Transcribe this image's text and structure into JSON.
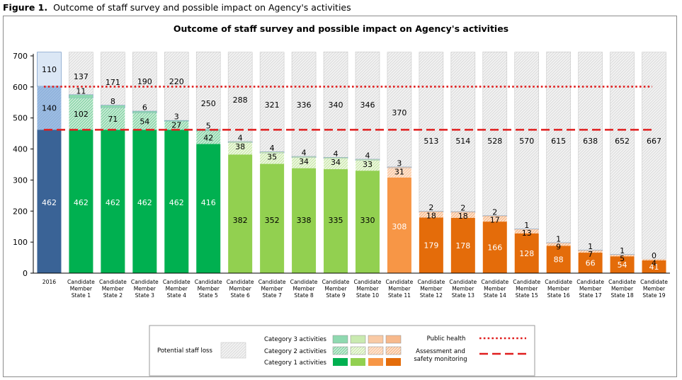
{
  "figure": {
    "label": "Figure 1.",
    "caption": "Outcome of staff survey and possible impact on Agency's activities"
  },
  "chart_data": {
    "type": "bar",
    "title": "Outcome of staff survey and possible impact on Agency's activities",
    "xlabel": "",
    "ylabel": "",
    "ylim": [
      0,
      700
    ],
    "yticks": [
      "0",
      "100",
      "200",
      "300",
      "400",
      "500",
      "600",
      "700"
    ],
    "categories": [
      "2016",
      "Candidate Member State 1",
      "Candidate Member State 2",
      "Candidate Member State 3",
      "Candidate Member State 4",
      "Candidate Member State 5",
      "Candidate Member State 6",
      "Candidate Member State 7",
      "Candidate Member State 8",
      "Candidate Member State 9",
      "Candidate Member State 10",
      "Candidate Member State 11",
      "Candidate Member State 12",
      "Candidate Member State 13",
      "Candidate Member State 14",
      "Candidate Member State 15",
      "Candidate Member State 16",
      "Candidate Member State 17",
      "Candidate Member State 18",
      "Candidate Member State 19"
    ],
    "category_lines": [
      [
        "2016"
      ],
      [
        "Candidate",
        "Member",
        "State 1"
      ],
      [
        "Candidate",
        "Member",
        "State 2"
      ],
      [
        "Candidate",
        "Member",
        "State 3"
      ],
      [
        "Candidate",
        "Member",
        "State 4"
      ],
      [
        "Candidate",
        "Member",
        "State 5"
      ],
      [
        "Candidate",
        "Member",
        "State 6"
      ],
      [
        "Candidate",
        "Member",
        "State 7"
      ],
      [
        "Candidate",
        "Member",
        "State 8"
      ],
      [
        "Candidate",
        "Member",
        "State 9"
      ],
      [
        "Candidate",
        "Member",
        "State 10"
      ],
      [
        "Candidate",
        "Member",
        "State 11"
      ],
      [
        "Candidate",
        "Member",
        "State 12"
      ],
      [
        "Candidate",
        "Member",
        "State 13"
      ],
      [
        "Candidate",
        "Member",
        "State 14"
      ],
      [
        "Candidate",
        "Member",
        "State 15"
      ],
      [
        "Candidate",
        "Member",
        "State 16"
      ],
      [
        "Candidate",
        "Member",
        "State 17"
      ],
      [
        "Candidate",
        "Member",
        "State 18"
      ],
      [
        "Candidate",
        "Member",
        "State 19"
      ]
    ],
    "group": [
      "base",
      "green",
      "green",
      "green",
      "green",
      "green",
      "lightgreen",
      "lightgreen",
      "lightgreen",
      "lightgreen",
      "lightgreen",
      "orangelight",
      "orange",
      "orange",
      "orange",
      "orange",
      "orange",
      "orange",
      "orange",
      "orange"
    ],
    "series": [
      {
        "name": "Category 1 activities",
        "values": [
          462,
          462,
          462,
          462,
          462,
          416,
          382,
          352,
          338,
          335,
          330,
          308,
          179,
          178,
          166,
          128,
          88,
          66,
          54,
          41
        ]
      },
      {
        "name": "Category 2 activities",
        "values": [
          140,
          102,
          71,
          54,
          27,
          42,
          38,
          35,
          34,
          34,
          33,
          31,
          18,
          18,
          17,
          13,
          9,
          7,
          5,
          4
        ]
      },
      {
        "name": "Category 3 activities",
        "values": [
          110,
          11,
          8,
          6,
          3,
          5,
          4,
          4,
          4,
          4,
          4,
          3,
          2,
          2,
          2,
          1,
          1,
          1,
          1,
          0
        ]
      },
      {
        "name": "Potential staff loss",
        "values": [
          null,
          137,
          171,
          190,
          220,
          250,
          288,
          321,
          336,
          340,
          346,
          370,
          513,
          514,
          528,
          570,
          615,
          638,
          652,
          667
        ]
      }
    ],
    "reference_lines": [
      {
        "name": "Public health",
        "value": 601,
        "style": "dotted",
        "color": "#e01e1e"
      },
      {
        "name": "Assessment and safety monitoring",
        "value": 462,
        "style": "dashed",
        "color": "#e01e1e"
      }
    ],
    "colors": {
      "base": [
        "#3a6396",
        "#9dbde3",
        "#dbe7f5"
      ],
      "green": [
        "#00b050",
        "#b8e6c8",
        "#8fd9b0"
      ],
      "lightgreen": [
        "#92d050",
        "#e4f4d2",
        "#c9eab0"
      ],
      "orangelight": [
        "#f79646",
        "#fbdcc4",
        "#f9caa5"
      ],
      "orange": [
        "#e46c0a",
        "#fbd5b8",
        "#f7b98c"
      ],
      "potential": "#ececec"
    },
    "legend": {
      "position": "bottom",
      "potential_label": "Potential staff loss",
      "category3_label": "Category 3 activities",
      "category2_label": "Category 2 activities",
      "category1_label": "Category 1 activities",
      "public_health_label": "Public health",
      "assessment_label_line1": "Assessment and",
      "assessment_label_line2": "safety monitoring"
    }
  }
}
